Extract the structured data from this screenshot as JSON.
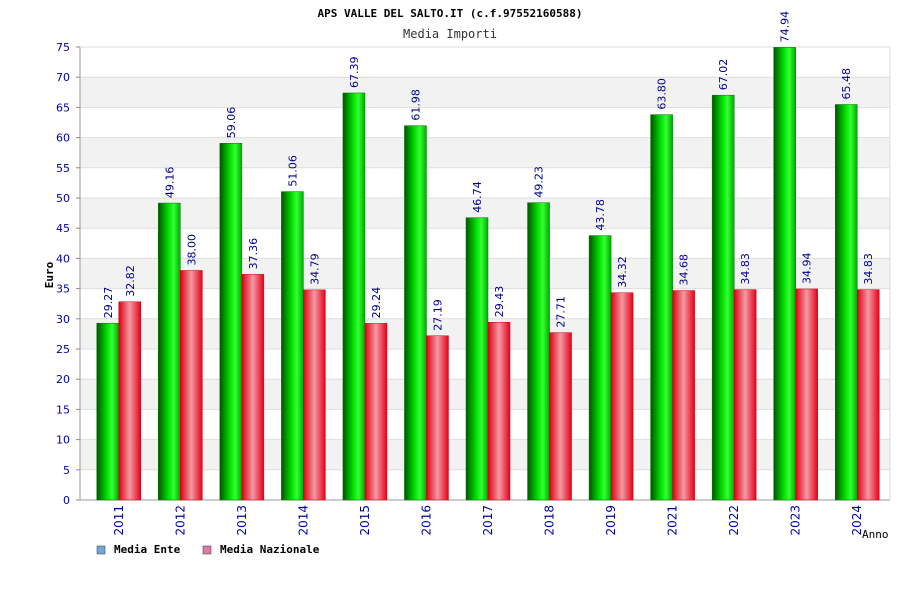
{
  "chart_data": {
    "type": "bar",
    "title": "APS VALLE DEL SALTO.IT (c.f.97552160588)",
    "subtitle": "Media Importi",
    "xlabel": "Anno",
    "ylabel": "Euro",
    "ylim": [
      0,
      75
    ],
    "yticks": [
      0,
      5,
      10,
      15,
      20,
      25,
      30,
      35,
      40,
      45,
      50,
      55,
      60,
      65,
      70,
      75
    ],
    "grid": true,
    "legend_position": "bottom-left",
    "categories": [
      "2011",
      "2012",
      "2013",
      "2014",
      "2015",
      "2016",
      "2017",
      "2018",
      "2019",
      "2021",
      "2022",
      "2023",
      "2024"
    ],
    "series": [
      {
        "name": "Media Ente",
        "color": "#00cc00",
        "legend_color": "#6fa8dc",
        "values": [
          29.27,
          49.16,
          59.06,
          51.06,
          67.39,
          61.98,
          46.74,
          49.23,
          43.78,
          63.8,
          67.02,
          74.94,
          65.48
        ],
        "labels": [
          "29.27",
          "49.16",
          "59.06",
          "51.06",
          "67.39",
          "61.98",
          "46.74",
          "49.23",
          "43.78",
          "63.80",
          "67.02",
          "74.94",
          "65.48"
        ]
      },
      {
        "name": "Media Nazionale",
        "color": "#ee1122",
        "legend_color": "#e07aa8",
        "values": [
          32.82,
          38.0,
          37.36,
          34.79,
          29.24,
          27.19,
          29.43,
          27.71,
          34.32,
          34.68,
          34.83,
          34.94,
          34.83
        ],
        "labels": [
          "32.82",
          "38.00",
          "37.36",
          "34.79",
          "29.24",
          "27.19",
          "29.43",
          "27.71",
          "34.32",
          "34.68",
          "34.83",
          "34.94",
          "34.83"
        ]
      }
    ]
  }
}
